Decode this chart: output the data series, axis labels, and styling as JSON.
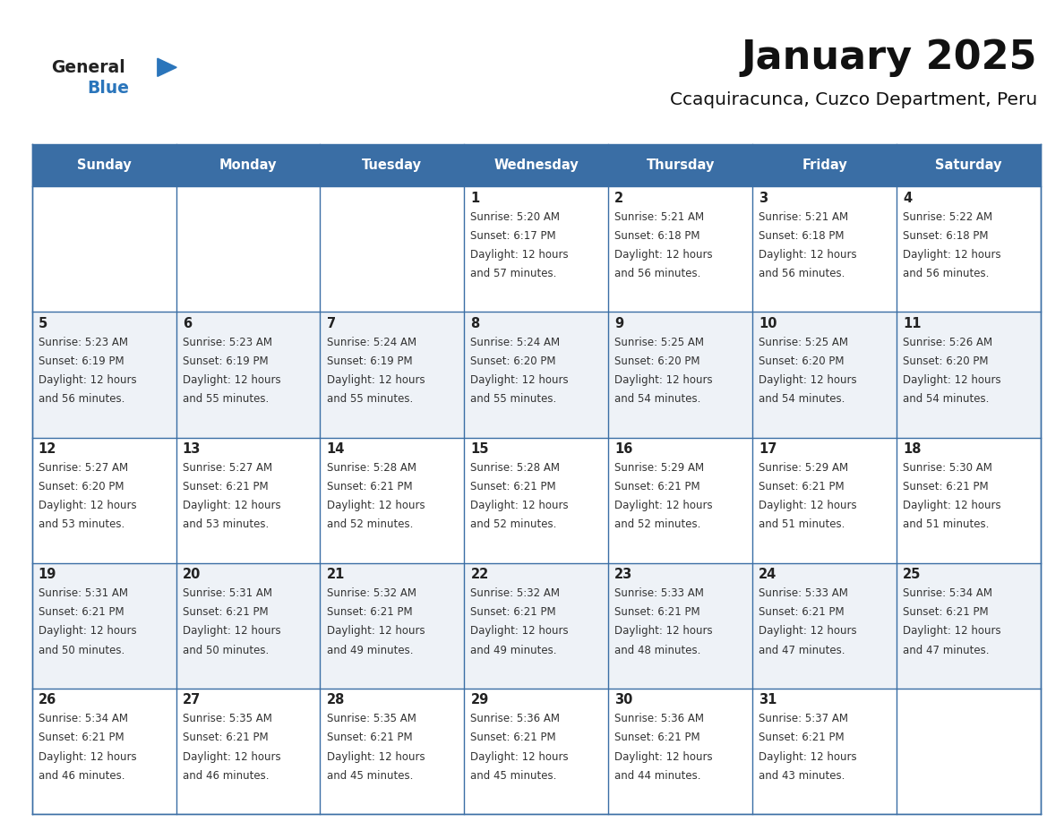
{
  "title": "January 2025",
  "subtitle": "Ccaquiracunca, Cuzco Department, Peru",
  "days_of_week": [
    "Sunday",
    "Monday",
    "Tuesday",
    "Wednesday",
    "Thursday",
    "Friday",
    "Saturday"
  ],
  "header_bg": "#3a6ea5",
  "header_text": "#FFFFFF",
  "row_bg_even": "#eef2f7",
  "row_bg_odd": "#FFFFFF",
  "cell_border": "#3a6ea5",
  "day_number_color": "#222222",
  "text_color": "#333333",
  "title_color": "#111111",
  "subtitle_color": "#111111",
  "logo_general_color": "#222222",
  "logo_blue_color": "#2a75bb",
  "calendar_data": [
    [
      {
        "day": null
      },
      {
        "day": null
      },
      {
        "day": null
      },
      {
        "day": 1,
        "sunrise": "5:20 AM",
        "sunset": "6:17 PM",
        "daylight": "12 hours",
        "daylight2": "and 57 minutes."
      },
      {
        "day": 2,
        "sunrise": "5:21 AM",
        "sunset": "6:18 PM",
        "daylight": "12 hours",
        "daylight2": "and 56 minutes."
      },
      {
        "day": 3,
        "sunrise": "5:21 AM",
        "sunset": "6:18 PM",
        "daylight": "12 hours",
        "daylight2": "and 56 minutes."
      },
      {
        "day": 4,
        "sunrise": "5:22 AM",
        "sunset": "6:18 PM",
        "daylight": "12 hours",
        "daylight2": "and 56 minutes."
      }
    ],
    [
      {
        "day": 5,
        "sunrise": "5:23 AM",
        "sunset": "6:19 PM",
        "daylight": "12 hours",
        "daylight2": "and 56 minutes."
      },
      {
        "day": 6,
        "sunrise": "5:23 AM",
        "sunset": "6:19 PM",
        "daylight": "12 hours",
        "daylight2": "and 55 minutes."
      },
      {
        "day": 7,
        "sunrise": "5:24 AM",
        "sunset": "6:19 PM",
        "daylight": "12 hours",
        "daylight2": "and 55 minutes."
      },
      {
        "day": 8,
        "sunrise": "5:24 AM",
        "sunset": "6:20 PM",
        "daylight": "12 hours",
        "daylight2": "and 55 minutes."
      },
      {
        "day": 9,
        "sunrise": "5:25 AM",
        "sunset": "6:20 PM",
        "daylight": "12 hours",
        "daylight2": "and 54 minutes."
      },
      {
        "day": 10,
        "sunrise": "5:25 AM",
        "sunset": "6:20 PM",
        "daylight": "12 hours",
        "daylight2": "and 54 minutes."
      },
      {
        "day": 11,
        "sunrise": "5:26 AM",
        "sunset": "6:20 PM",
        "daylight": "12 hours",
        "daylight2": "and 54 minutes."
      }
    ],
    [
      {
        "day": 12,
        "sunrise": "5:27 AM",
        "sunset": "6:20 PM",
        "daylight": "12 hours",
        "daylight2": "and 53 minutes."
      },
      {
        "day": 13,
        "sunrise": "5:27 AM",
        "sunset": "6:21 PM",
        "daylight": "12 hours",
        "daylight2": "and 53 minutes."
      },
      {
        "day": 14,
        "sunrise": "5:28 AM",
        "sunset": "6:21 PM",
        "daylight": "12 hours",
        "daylight2": "and 52 minutes."
      },
      {
        "day": 15,
        "sunrise": "5:28 AM",
        "sunset": "6:21 PM",
        "daylight": "12 hours",
        "daylight2": "and 52 minutes."
      },
      {
        "day": 16,
        "sunrise": "5:29 AM",
        "sunset": "6:21 PM",
        "daylight": "12 hours",
        "daylight2": "and 52 minutes."
      },
      {
        "day": 17,
        "sunrise": "5:29 AM",
        "sunset": "6:21 PM",
        "daylight": "12 hours",
        "daylight2": "and 51 minutes."
      },
      {
        "day": 18,
        "sunrise": "5:30 AM",
        "sunset": "6:21 PM",
        "daylight": "12 hours",
        "daylight2": "and 51 minutes."
      }
    ],
    [
      {
        "day": 19,
        "sunrise": "5:31 AM",
        "sunset": "6:21 PM",
        "daylight": "12 hours",
        "daylight2": "and 50 minutes."
      },
      {
        "day": 20,
        "sunrise": "5:31 AM",
        "sunset": "6:21 PM",
        "daylight": "12 hours",
        "daylight2": "and 50 minutes."
      },
      {
        "day": 21,
        "sunrise": "5:32 AM",
        "sunset": "6:21 PM",
        "daylight": "12 hours",
        "daylight2": "and 49 minutes."
      },
      {
        "day": 22,
        "sunrise": "5:32 AM",
        "sunset": "6:21 PM",
        "daylight": "12 hours",
        "daylight2": "and 49 minutes."
      },
      {
        "day": 23,
        "sunrise": "5:33 AM",
        "sunset": "6:21 PM",
        "daylight": "12 hours",
        "daylight2": "and 48 minutes."
      },
      {
        "day": 24,
        "sunrise": "5:33 AM",
        "sunset": "6:21 PM",
        "daylight": "12 hours",
        "daylight2": "and 47 minutes."
      },
      {
        "day": 25,
        "sunrise": "5:34 AM",
        "sunset": "6:21 PM",
        "daylight": "12 hours",
        "daylight2": "and 47 minutes."
      }
    ],
    [
      {
        "day": 26,
        "sunrise": "5:34 AM",
        "sunset": "6:21 PM",
        "daylight": "12 hours",
        "daylight2": "and 46 minutes."
      },
      {
        "day": 27,
        "sunrise": "5:35 AM",
        "sunset": "6:21 PM",
        "daylight": "12 hours",
        "daylight2": "and 46 minutes."
      },
      {
        "day": 28,
        "sunrise": "5:35 AM",
        "sunset": "6:21 PM",
        "daylight": "12 hours",
        "daylight2": "and 45 minutes."
      },
      {
        "day": 29,
        "sunrise": "5:36 AM",
        "sunset": "6:21 PM",
        "daylight": "12 hours",
        "daylight2": "and 45 minutes."
      },
      {
        "day": 30,
        "sunrise": "5:36 AM",
        "sunset": "6:21 PM",
        "daylight": "12 hours",
        "daylight2": "and 44 minutes."
      },
      {
        "day": 31,
        "sunrise": "5:37 AM",
        "sunset": "6:21 PM",
        "daylight": "12 hours",
        "daylight2": "and 43 minutes."
      },
      {
        "day": null
      }
    ]
  ],
  "n_rows": 5,
  "n_cols": 7,
  "fig_width": 11.88,
  "fig_height": 9.18
}
